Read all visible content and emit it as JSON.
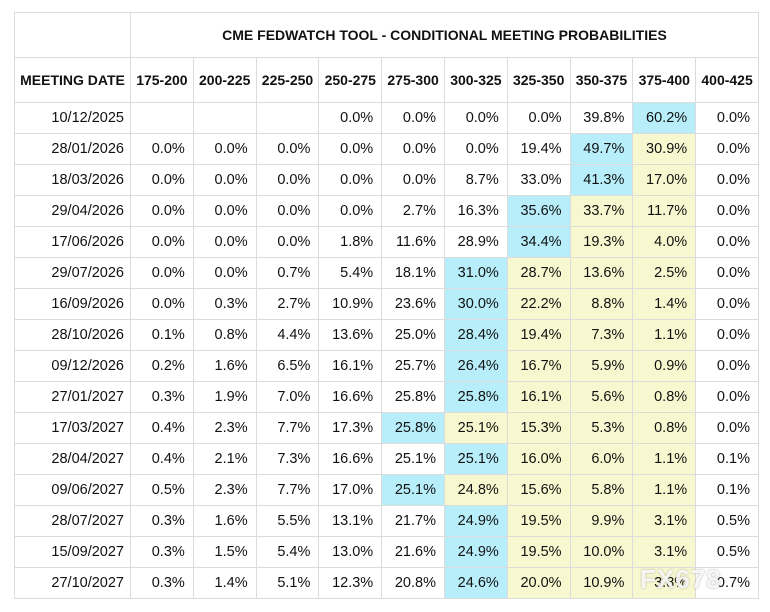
{
  "table": {
    "title": "CME FEDWATCH TOOL - CONDITIONAL MEETING PROBABILITIES",
    "header": [
      "MEETING DATE",
      "175-200",
      "200-225",
      "225-250",
      "250-275",
      "275-300",
      "300-325",
      "325-350",
      "350-375",
      "375-400",
      "400-425"
    ],
    "rows": [
      {
        "cells": [
          "10/12/2025",
          null,
          null,
          null,
          "0.0%",
          "0.0%",
          "0.0%",
          "0.0%",
          "39.8%",
          "60.2%",
          "0.0%"
        ],
        "fills": [
          null,
          null,
          null,
          null,
          null,
          null,
          null,
          null,
          null,
          "#b7eefa",
          null
        ]
      },
      {
        "cells": [
          "28/01/2026",
          "0.0%",
          "0.0%",
          "0.0%",
          "0.0%",
          "0.0%",
          "0.0%",
          "19.4%",
          "49.7%",
          "30.9%",
          "0.0%"
        ],
        "fills": [
          null,
          null,
          null,
          null,
          null,
          null,
          null,
          null,
          "#b7eefa",
          "#f8f8d0",
          null
        ]
      },
      {
        "cells": [
          "18/03/2026",
          "0.0%",
          "0.0%",
          "0.0%",
          "0.0%",
          "0.0%",
          "8.7%",
          "33.0%",
          "41.3%",
          "17.0%",
          "0.0%"
        ],
        "fills": [
          null,
          null,
          null,
          null,
          null,
          null,
          null,
          null,
          "#b7eefa",
          "#f8f8d0",
          null
        ]
      },
      {
        "cells": [
          "29/04/2026",
          "0.0%",
          "0.0%",
          "0.0%",
          "0.0%",
          "2.7%",
          "16.3%",
          "35.6%",
          "33.7%",
          "11.7%",
          "0.0%"
        ],
        "fills": [
          null,
          null,
          null,
          null,
          null,
          null,
          null,
          "#b7eefa",
          "#f8f8d0",
          "#f8f8d0",
          null
        ]
      },
      {
        "cells": [
          "17/06/2026",
          "0.0%",
          "0.0%",
          "0.0%",
          "1.8%",
          "11.6%",
          "28.9%",
          "34.4%",
          "19.3%",
          "4.0%",
          "0.0%"
        ],
        "fills": [
          null,
          null,
          null,
          null,
          null,
          null,
          null,
          "#b7eefa",
          "#f8f8d0",
          "#f8f8d0",
          null
        ]
      },
      {
        "cells": [
          "29/07/2026",
          "0.0%",
          "0.0%",
          "0.7%",
          "5.4%",
          "18.1%",
          "31.0%",
          "28.7%",
          "13.6%",
          "2.5%",
          "0.0%"
        ],
        "fills": [
          null,
          null,
          null,
          null,
          null,
          null,
          "#b7eefa",
          "#f8f8d0",
          "#f8f8d0",
          "#f8f8d0",
          null
        ]
      },
      {
        "cells": [
          "16/09/2026",
          "0.0%",
          "0.3%",
          "2.7%",
          "10.9%",
          "23.6%",
          "30.0%",
          "22.2%",
          "8.8%",
          "1.4%",
          "0.0%"
        ],
        "fills": [
          null,
          null,
          null,
          null,
          null,
          null,
          "#b7eefa",
          "#f8f8d0",
          "#f8f8d0",
          "#f8f8d0",
          null
        ]
      },
      {
        "cells": [
          "28/10/2026",
          "0.1%",
          "0.8%",
          "4.4%",
          "13.6%",
          "25.0%",
          "28.4%",
          "19.4%",
          "7.3%",
          "1.1%",
          "0.0%"
        ],
        "fills": [
          null,
          null,
          null,
          null,
          null,
          null,
          "#b7eefa",
          "#f8f8d0",
          "#f8f8d0",
          "#f8f8d0",
          null
        ]
      },
      {
        "cells": [
          "09/12/2026",
          "0.2%",
          "1.6%",
          "6.5%",
          "16.1%",
          "25.7%",
          "26.4%",
          "16.7%",
          "5.9%",
          "0.9%",
          "0.0%"
        ],
        "fills": [
          null,
          null,
          null,
          null,
          null,
          null,
          "#b7eefa",
          "#f8f8d0",
          "#f8f8d0",
          "#f8f8d0",
          null
        ]
      },
      {
        "cells": [
          "27/01/2027",
          "0.3%",
          "1.9%",
          "7.0%",
          "16.6%",
          "25.8%",
          "25.8%",
          "16.1%",
          "5.6%",
          "0.8%",
          "0.0%"
        ],
        "fills": [
          null,
          null,
          null,
          null,
          null,
          null,
          "#b7eefa",
          "#f8f8d0",
          "#f8f8d0",
          "#f8f8d0",
          null
        ]
      },
      {
        "cells": [
          "17/03/2027",
          "0.4%",
          "2.3%",
          "7.7%",
          "17.3%",
          "25.8%",
          "25.1%",
          "15.3%",
          "5.3%",
          "0.8%",
          "0.0%"
        ],
        "fills": [
          null,
          null,
          null,
          null,
          null,
          "#b7eefa",
          "#f8f8d0",
          "#f8f8d0",
          "#f8f8d0",
          "#f8f8d0",
          null
        ]
      },
      {
        "cells": [
          "28/04/2027",
          "0.4%",
          "2.1%",
          "7.3%",
          "16.6%",
          "25.1%",
          "25.1%",
          "16.0%",
          "6.0%",
          "1.1%",
          "0.1%"
        ],
        "fills": [
          null,
          null,
          null,
          null,
          null,
          null,
          "#b7eefa",
          "#f8f8d0",
          "#f8f8d0",
          "#f8f8d0",
          null
        ]
      },
      {
        "cells": [
          "09/06/2027",
          "0.5%",
          "2.3%",
          "7.7%",
          "17.0%",
          "25.1%",
          "24.8%",
          "15.6%",
          "5.8%",
          "1.1%",
          "0.1%"
        ],
        "fills": [
          null,
          null,
          null,
          null,
          null,
          "#b7eefa",
          "#f8f8d0",
          "#f8f8d0",
          "#f8f8d0",
          "#f8f8d0",
          null
        ]
      },
      {
        "cells": [
          "28/07/2027",
          "0.3%",
          "1.6%",
          "5.5%",
          "13.1%",
          "21.7%",
          "24.9%",
          "19.5%",
          "9.9%",
          "3.1%",
          "0.5%"
        ],
        "fills": [
          null,
          null,
          null,
          null,
          null,
          null,
          "#b7eefa",
          "#f8f8d0",
          "#f8f8d0",
          "#f8f8d0",
          null
        ]
      },
      {
        "cells": [
          "15/09/2027",
          "0.3%",
          "1.5%",
          "5.4%",
          "13.0%",
          "21.6%",
          "24.9%",
          "19.5%",
          "10.0%",
          "3.1%",
          "0.5%"
        ],
        "fills": [
          null,
          null,
          null,
          null,
          null,
          null,
          "#b7eefa",
          "#f8f8d0",
          "#f8f8d0",
          "#f8f8d0",
          null
        ]
      },
      {
        "cells": [
          "27/10/2027",
          "0.3%",
          "1.4%",
          "5.1%",
          "12.3%",
          "20.8%",
          "24.6%",
          "20.0%",
          "10.9%",
          "3.8%",
          "0.7%"
        ],
        "fills": [
          null,
          null,
          null,
          null,
          null,
          null,
          "#b7eefa",
          "#f8f8d0",
          "#f8f8d0",
          "#f8f8d0",
          null
        ]
      }
    ]
  },
  "watermark": "FX678"
}
